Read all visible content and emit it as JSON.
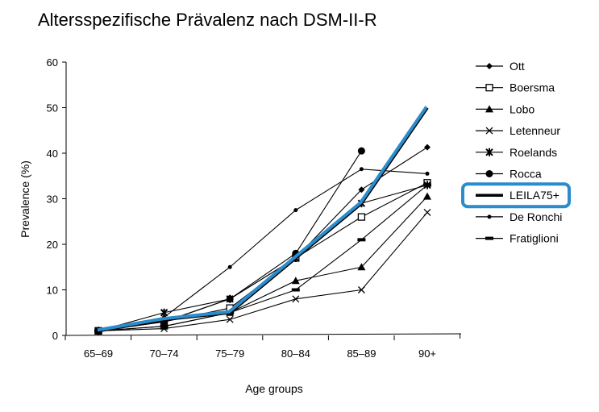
{
  "chart_data": {
    "type": "line",
    "title": "Altersspezifische Prävalenz nach DSM-II-R",
    "xlabel": "Age groups",
    "ylabel": "Prevalence (%)",
    "ylim": [
      0,
      60
    ],
    "yticks": [
      0,
      10,
      20,
      30,
      40,
      50,
      60
    ],
    "categories": [
      "65–69",
      "70–74",
      "75–79",
      "80–84",
      "85–89",
      "90+"
    ],
    "legend_position": "right",
    "highlight_color": "#2b8ccc",
    "series": [
      {
        "name": "Ott",
        "marker": "diamond",
        "values": [
          1,
          3,
          8,
          17,
          32,
          41.3
        ]
      },
      {
        "name": "Boersma",
        "marker": "open-square",
        "values": [
          1,
          3,
          6,
          17,
          26,
          33.5
        ]
      },
      {
        "name": "Lobo",
        "marker": "triangle",
        "values": [
          1,
          2,
          5,
          12,
          15,
          30.5
        ]
      },
      {
        "name": "Letenneur",
        "marker": "x",
        "values": [
          1,
          1.5,
          3.5,
          8,
          10,
          27
        ]
      },
      {
        "name": "Roelands",
        "marker": "star",
        "values": [
          1,
          5,
          8,
          17,
          29,
          33
        ]
      },
      {
        "name": "Rocca",
        "marker": "circle",
        "values": [
          1,
          3,
          8,
          18,
          40.5,
          null
        ]
      },
      {
        "name": "LEILA75+",
        "marker": "thick",
        "highlight": true,
        "values": [
          1,
          3.5,
          5,
          17,
          29,
          50
        ]
      },
      {
        "name": "De Ronchi",
        "marker": "small-dot",
        "values": [
          1,
          4,
          15,
          27.5,
          36.5,
          35.5
        ]
      },
      {
        "name": "Fratiglioni",
        "marker": "dash",
        "values": [
          1,
          2,
          5,
          10,
          21,
          33
        ]
      }
    ]
  }
}
